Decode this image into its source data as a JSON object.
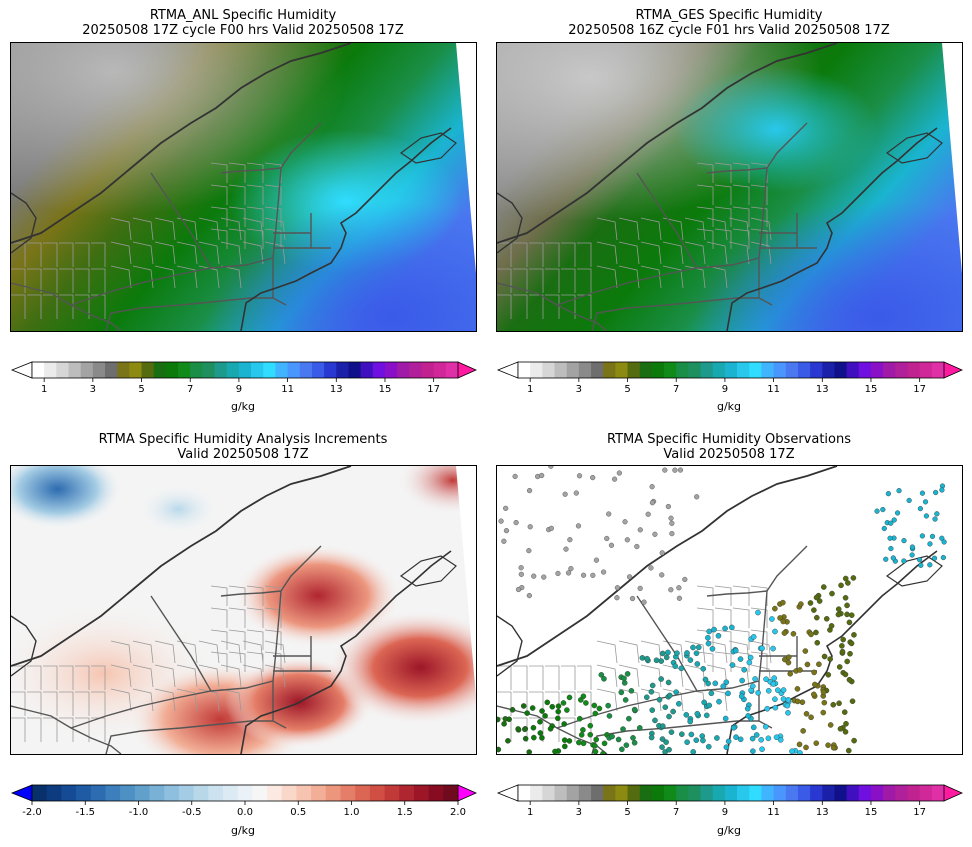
{
  "panels": [
    {
      "title_line1": "RTMA_ANL Specific Humidity",
      "title_line2": "20250508 17Z cycle F00 hrs Valid 20250508 17Z"
    },
    {
      "title_line1": "RTMA_GES Specific Humidity",
      "title_line2": "20250508 16Z cycle F01 hrs Valid 20250508 17Z"
    },
    {
      "title_line1": "RTMA Specific Humidity Analysis Increments",
      "title_line2": "Valid 20250508 17Z"
    },
    {
      "title_line1": "RTMA Specific Humidity Observations",
      "title_line2": "Valid 20250508 17Z"
    }
  ],
  "colorbars": {
    "humidity": {
      "unit": "g/kg",
      "ticks": [
        "1",
        "3",
        "5",
        "7",
        "9",
        "11",
        "13",
        "15",
        "17"
      ],
      "colors": [
        "#ffffff",
        "#ebebeb",
        "#d6d6d6",
        "#bdbdbd",
        "#a3a3a3",
        "#8a8a8a",
        "#6e6e6e",
        "#7a7418",
        "#8c8a10",
        "#556b10",
        "#1a6e12",
        "#0b7a0b",
        "#108a18",
        "#1a8e46",
        "#1e9060",
        "#1e9a8c",
        "#18a8b0",
        "#1ab4d0",
        "#28c8ec",
        "#30dcff",
        "#40b4ff",
        "#4a96ff",
        "#4a78f0",
        "#3a5ae8",
        "#2838d0",
        "#1a20a8",
        "#10108a",
        "#4010c0",
        "#7010e0",
        "#8a10c8",
        "#a01aa8",
        "#b0209a",
        "#c02290",
        "#d02898",
        "#e030a8"
      ],
      "extend_color": "#ff1aa0"
    },
    "increments": {
      "unit": "g/kg",
      "ticks": [
        "-2.0",
        "-1.5",
        "-1.0",
        "-0.5",
        "0.0",
        "0.5",
        "1.0",
        "1.5",
        "2.0"
      ],
      "colors": [
        "#08306b",
        "#0d3b80",
        "#154a94",
        "#1f5aa4",
        "#2d6cb0",
        "#3c7fbc",
        "#4c90c4",
        "#62a0cc",
        "#78b0d6",
        "#8ebfde",
        "#a4cce4",
        "#b8d8ea",
        "#cce2f0",
        "#dceaf4",
        "#eaf1f7",
        "#f6f6f6",
        "#fbe9e2",
        "#f9d8c9",
        "#f6c4b0",
        "#f2ae96",
        "#ec967e",
        "#e57e68",
        "#dc6654",
        "#d14e44",
        "#c23a38",
        "#b02630",
        "#9c1628",
        "#870c22",
        "#700a1e"
      ],
      "low_extend_color": "#0000ff",
      "high_extend_color": "#ff00ff"
    }
  },
  "colors": {
    "state_border": "#555555",
    "county_border": "#9a9a9a",
    "coastline": "#333333"
  }
}
